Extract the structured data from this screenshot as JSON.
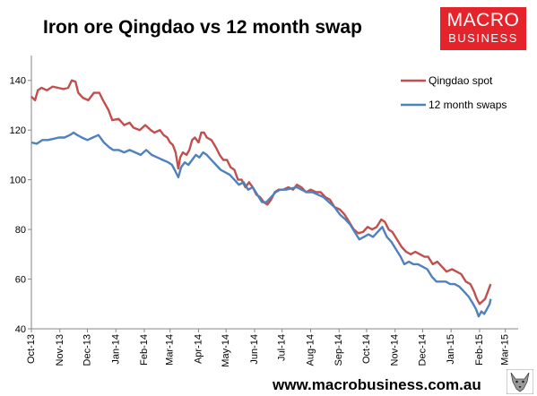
{
  "header": {
    "title": "Iron ore Qingdao vs 12 month swap",
    "logo_line1": "MACRO",
    "logo_line2": "BUSINESS"
  },
  "footer": {
    "url": "www.macrobusiness.com.au"
  },
  "colors": {
    "spot": "#c0504d",
    "swap": "#4f81bd",
    "logo_bg": "#e4232b"
  },
  "chart_data": {
    "type": "line",
    "title": "Iron ore Qingdao vs 12 month swap",
    "xlabel": "",
    "ylabel": "",
    "ylim": [
      40,
      150
    ],
    "yticks": [
      40,
      60,
      80,
      100,
      120,
      140
    ],
    "xlim": [
      "2013-10-01",
      "2015-03-15"
    ],
    "xtick_labels": [
      "Oct-13",
      "Nov-13",
      "Dec-13",
      "Jan-14",
      "Feb-14",
      "Mar-14",
      "Apr-14",
      "May-14",
      "Jun-14",
      "Jul-14",
      "Aug-14",
      "Sep-14",
      "Oct-14",
      "Nov-14",
      "Dec-14",
      "Jan-15",
      "Feb-15",
      "Mar-15"
    ],
    "xtick_dates": [
      "2013-10-01",
      "2013-11-01",
      "2013-12-01",
      "2014-01-01",
      "2014-02-01",
      "2014-03-01",
      "2014-04-01",
      "2014-05-01",
      "2014-06-01",
      "2014-07-01",
      "2014-08-01",
      "2014-09-01",
      "2014-10-01",
      "2014-11-01",
      "2014-12-01",
      "2015-01-01",
      "2015-02-01",
      "2015-03-01"
    ],
    "grid": false,
    "legend": "top-right",
    "series": [
      {
        "name": "Qingdao spot",
        "color": "#c0504d",
        "points": [
          [
            "2013-10-01",
            133.5
          ],
          [
            "2013-10-05",
            132
          ],
          [
            "2013-10-08",
            136
          ],
          [
            "2013-10-12",
            137
          ],
          [
            "2013-10-18",
            136
          ],
          [
            "2013-10-24",
            137.5
          ],
          [
            "2013-10-30",
            137
          ],
          [
            "2013-11-05",
            136.5
          ],
          [
            "2013-11-10",
            137
          ],
          [
            "2013-11-14",
            140
          ],
          [
            "2013-11-18",
            139.5
          ],
          [
            "2013-11-21",
            135
          ],
          [
            "2013-11-26",
            133
          ],
          [
            "2013-12-02",
            132
          ],
          [
            "2013-12-08",
            135
          ],
          [
            "2013-12-14",
            135
          ],
          [
            "2013-12-18",
            132
          ],
          [
            "2013-12-24",
            128
          ],
          [
            "2013-12-28",
            124
          ],
          [
            "2014-01-04",
            124.5
          ],
          [
            "2014-01-10",
            122
          ],
          [
            "2014-01-16",
            123
          ],
          [
            "2014-01-20",
            121
          ],
          [
            "2014-01-27",
            120
          ],
          [
            "2014-02-02",
            122
          ],
          [
            "2014-02-08",
            120
          ],
          [
            "2014-02-12",
            119
          ],
          [
            "2014-02-18",
            120
          ],
          [
            "2014-02-22",
            118
          ],
          [
            "2014-02-26",
            117
          ],
          [
            "2014-03-01",
            115
          ],
          [
            "2014-03-04",
            114
          ],
          [
            "2014-03-07",
            111
          ],
          [
            "2014-03-10",
            104.5
          ],
          [
            "2014-03-12",
            109
          ],
          [
            "2014-03-15",
            111
          ],
          [
            "2014-03-19",
            110
          ],
          [
            "2014-03-22",
            112
          ],
          [
            "2014-03-25",
            116
          ],
          [
            "2014-03-28",
            117
          ],
          [
            "2014-04-01",
            115
          ],
          [
            "2014-04-04",
            119
          ],
          [
            "2014-04-07",
            119
          ],
          [
            "2014-04-10",
            117
          ],
          [
            "2014-04-15",
            116
          ],
          [
            "2014-04-20",
            113
          ],
          [
            "2014-04-24",
            110
          ],
          [
            "2014-04-28",
            108
          ],
          [
            "2014-05-02",
            108
          ],
          [
            "2014-05-06",
            105
          ],
          [
            "2014-05-10",
            104
          ],
          [
            "2014-05-14",
            100
          ],
          [
            "2014-05-18",
            100
          ],
          [
            "2014-05-22",
            97
          ],
          [
            "2014-05-26",
            99
          ],
          [
            "2014-05-30",
            97
          ],
          [
            "2014-06-03",
            94
          ],
          [
            "2014-06-07",
            93
          ],
          [
            "2014-06-11",
            91
          ],
          [
            "2014-06-15",
            90
          ],
          [
            "2014-06-19",
            92
          ],
          [
            "2014-06-23",
            95
          ],
          [
            "2014-06-27",
            96
          ],
          [
            "2014-07-02",
            96
          ],
          [
            "2014-07-08",
            97
          ],
          [
            "2014-07-13",
            96
          ],
          [
            "2014-07-17",
            98
          ],
          [
            "2014-07-22",
            97
          ],
          [
            "2014-07-27",
            95
          ],
          [
            "2014-08-01",
            96
          ],
          [
            "2014-08-07",
            95
          ],
          [
            "2014-08-12",
            95
          ],
          [
            "2014-08-17",
            93
          ],
          [
            "2014-08-22",
            92
          ],
          [
            "2014-08-27",
            89
          ],
          [
            "2014-09-02",
            88
          ],
          [
            "2014-09-07",
            86
          ],
          [
            "2014-09-12",
            83
          ],
          [
            "2014-09-17",
            80
          ],
          [
            "2014-09-22",
            78.5
          ],
          [
            "2014-09-27",
            79
          ],
          [
            "2014-10-02",
            81
          ],
          [
            "2014-10-07",
            80
          ],
          [
            "2014-10-12",
            81
          ],
          [
            "2014-10-17",
            84
          ],
          [
            "2014-10-21",
            83
          ],
          [
            "2014-10-25",
            80
          ],
          [
            "2014-10-29",
            79
          ],
          [
            "2014-11-03",
            76
          ],
          [
            "2014-11-08",
            73
          ],
          [
            "2014-11-13",
            71
          ],
          [
            "2014-11-18",
            70
          ],
          [
            "2014-11-23",
            71
          ],
          [
            "2014-11-28",
            70
          ],
          [
            "2014-12-03",
            69
          ],
          [
            "2014-12-07",
            69
          ],
          [
            "2014-12-12",
            66
          ],
          [
            "2014-12-17",
            67
          ],
          [
            "2014-12-22",
            65
          ],
          [
            "2014-12-27",
            63
          ],
          [
            "2015-01-02",
            64
          ],
          [
            "2015-01-07",
            63
          ],
          [
            "2015-01-12",
            62
          ],
          [
            "2015-01-17",
            59
          ],
          [
            "2015-01-22",
            58
          ],
          [
            "2015-01-26",
            55
          ],
          [
            "2015-01-29",
            52
          ],
          [
            "2015-02-01",
            50
          ],
          [
            "2015-02-04",
            51
          ],
          [
            "2015-02-07",
            52
          ],
          [
            "2015-02-10",
            55
          ],
          [
            "2015-02-13",
            58
          ]
        ]
      },
      {
        "name": "12 month swaps",
        "color": "#4f81bd",
        "points": [
          [
            "2013-10-01",
            115
          ],
          [
            "2013-10-07",
            114.5
          ],
          [
            "2013-10-13",
            116
          ],
          [
            "2013-10-19",
            116
          ],
          [
            "2013-10-25",
            116.5
          ],
          [
            "2013-10-31",
            117
          ],
          [
            "2013-11-06",
            117
          ],
          [
            "2013-11-12",
            118
          ],
          [
            "2013-11-16",
            119
          ],
          [
            "2013-11-20",
            118
          ],
          [
            "2013-11-25",
            117
          ],
          [
            "2013-12-01",
            116
          ],
          [
            "2013-12-07",
            117
          ],
          [
            "2013-12-13",
            118
          ],
          [
            "2013-12-19",
            115
          ],
          [
            "2013-12-25",
            113
          ],
          [
            "2013-12-29",
            112
          ],
          [
            "2014-01-04",
            112
          ],
          [
            "2014-01-10",
            111
          ],
          [
            "2014-01-16",
            112
          ],
          [
            "2014-01-22",
            111
          ],
          [
            "2014-01-28",
            110
          ],
          [
            "2014-02-03",
            112
          ],
          [
            "2014-02-09",
            110
          ],
          [
            "2014-02-15",
            109
          ],
          [
            "2014-02-21",
            108
          ],
          [
            "2014-02-27",
            107
          ],
          [
            "2014-03-03",
            106
          ],
          [
            "2014-03-06",
            104
          ],
          [
            "2014-03-10",
            101
          ],
          [
            "2014-03-13",
            105
          ],
          [
            "2014-03-17",
            107
          ],
          [
            "2014-03-21",
            106
          ],
          [
            "2014-03-25",
            108
          ],
          [
            "2014-03-29",
            110
          ],
          [
            "2014-04-02",
            109
          ],
          [
            "2014-04-06",
            111
          ],
          [
            "2014-04-10",
            110
          ],
          [
            "2014-04-15",
            108
          ],
          [
            "2014-04-20",
            106
          ],
          [
            "2014-04-25",
            104
          ],
          [
            "2014-04-30",
            103
          ],
          [
            "2014-05-05",
            102
          ],
          [
            "2014-05-10",
            100
          ],
          [
            "2014-05-15",
            98
          ],
          [
            "2014-05-20",
            99
          ],
          [
            "2014-05-25",
            96
          ],
          [
            "2014-05-30",
            97
          ],
          [
            "2014-06-04",
            94
          ],
          [
            "2014-06-09",
            91
          ],
          [
            "2014-06-14",
            91
          ],
          [
            "2014-06-19",
            93
          ],
          [
            "2014-06-24",
            95
          ],
          [
            "2014-06-29",
            96
          ],
          [
            "2014-07-05",
            96
          ],
          [
            "2014-07-11",
            96.5
          ],
          [
            "2014-07-17",
            97
          ],
          [
            "2014-07-22",
            96
          ],
          [
            "2014-07-28",
            95
          ],
          [
            "2014-08-03",
            95
          ],
          [
            "2014-08-09",
            94
          ],
          [
            "2014-08-15",
            93
          ],
          [
            "2014-08-21",
            91
          ],
          [
            "2014-08-27",
            89
          ],
          [
            "2014-09-02",
            86
          ],
          [
            "2014-09-08",
            84
          ],
          [
            "2014-09-13",
            82
          ],
          [
            "2014-09-18",
            79
          ],
          [
            "2014-09-23",
            76
          ],
          [
            "2014-09-28",
            77
          ],
          [
            "2014-10-03",
            78
          ],
          [
            "2014-10-08",
            77
          ],
          [
            "2014-10-13",
            79
          ],
          [
            "2014-10-18",
            81
          ],
          [
            "2014-10-23",
            77
          ],
          [
            "2014-10-28",
            75
          ],
          [
            "2014-11-02",
            72
          ],
          [
            "2014-11-07",
            69
          ],
          [
            "2014-11-11",
            66
          ],
          [
            "2014-11-16",
            67
          ],
          [
            "2014-11-21",
            66
          ],
          [
            "2014-11-26",
            66
          ],
          [
            "2014-12-01",
            65
          ],
          [
            "2014-12-06",
            64
          ],
          [
            "2014-12-11",
            61
          ],
          [
            "2014-12-16",
            59
          ],
          [
            "2014-12-21",
            59
          ],
          [
            "2014-12-26",
            59
          ],
          [
            "2014-12-31",
            58
          ],
          [
            "2015-01-05",
            58
          ],
          [
            "2015-01-10",
            57
          ],
          [
            "2015-01-15",
            55
          ],
          [
            "2015-01-20",
            53
          ],
          [
            "2015-01-25",
            50
          ],
          [
            "2015-01-28",
            48
          ],
          [
            "2015-01-31",
            45
          ],
          [
            "2015-02-03",
            47
          ],
          [
            "2015-02-06",
            46
          ],
          [
            "2015-02-09",
            48
          ],
          [
            "2015-02-12",
            50
          ],
          [
            "2015-02-13",
            52
          ]
        ]
      }
    ]
  }
}
